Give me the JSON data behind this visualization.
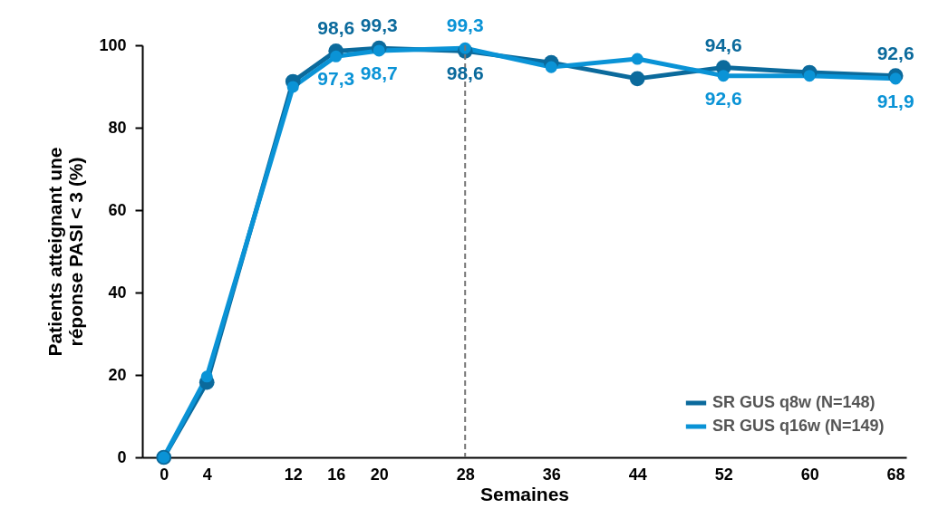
{
  "chart_data": {
    "type": "line",
    "xlabel": "Semaines",
    "ylabel": "Patients atteignant une réponse PASI < 3 (%)",
    "x": [
      0,
      4,
      12,
      16,
      20,
      28,
      36,
      44,
      52,
      60,
      68
    ],
    "xlim": [
      -2,
      69
    ],
    "xticks": [
      0,
      4,
      12,
      16,
      20,
      28,
      36,
      44,
      52,
      60,
      68
    ],
    "ylim": [
      0,
      100
    ],
    "yticks": [
      0,
      20,
      40,
      60,
      80,
      100
    ],
    "series": [
      {
        "name": "SR GUS q8w (N=148)",
        "color": "#0b6a9c",
        "values": [
          0,
          18.2,
          91.2,
          98.6,
          99.3,
          98.6,
          95.8,
          91.9,
          94.6,
          93.4,
          92.6
        ],
        "value_labels": [
          null,
          null,
          null,
          "98,6",
          "99,3",
          "98,6",
          null,
          null,
          "94,6",
          null,
          "92,6"
        ]
      },
      {
        "name": "SR GUS q16w (N=149)",
        "color": "#0a93d6",
        "values": [
          0,
          19.6,
          89.9,
          97.3,
          98.7,
          99.3,
          94.7,
          96.7,
          92.6,
          92.6,
          91.9
        ],
        "value_labels": [
          null,
          null,
          null,
          "97,3",
          "98,7",
          "99,3",
          null,
          null,
          "92,6",
          null,
          "91,9"
        ]
      }
    ],
    "ref_lines": [
      {
        "axis": "x",
        "value": 28,
        "color": "#777777",
        "line_style": "dashed"
      }
    ],
    "marker": "circle",
    "grid": false,
    "legend": "bottom right"
  }
}
